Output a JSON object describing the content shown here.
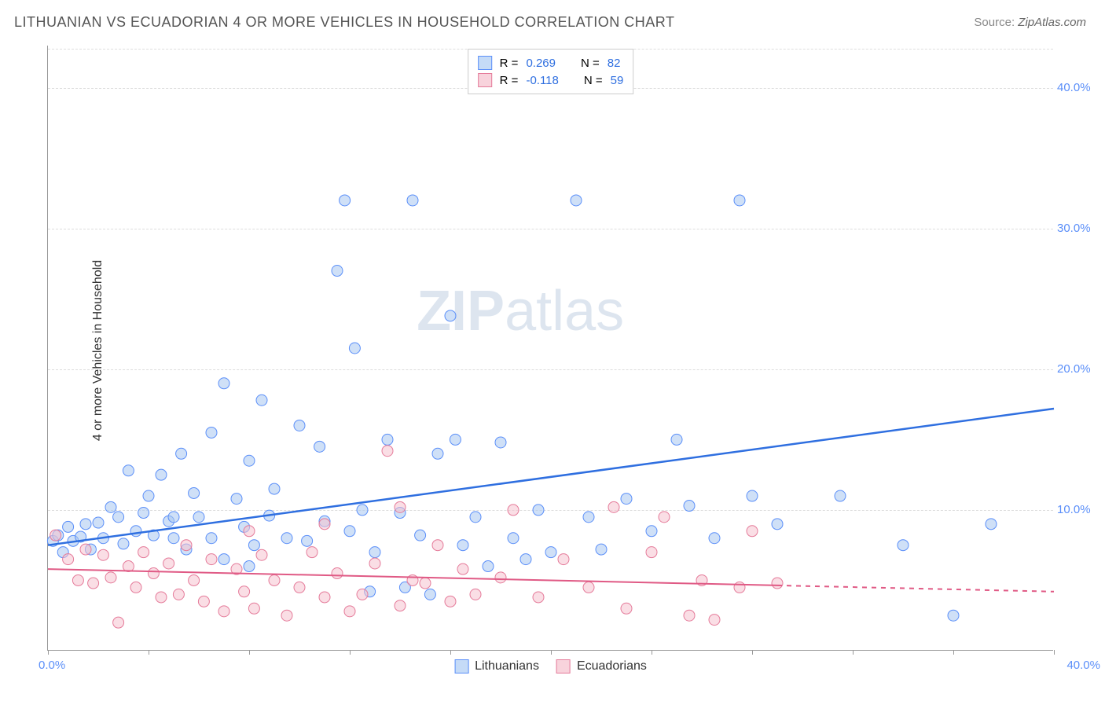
{
  "title": "LITHUANIAN VS ECUADORIAN 4 OR MORE VEHICLES IN HOUSEHOLD CORRELATION CHART",
  "source_label": "Source:",
  "source_value": "ZipAtlas.com",
  "y_axis_label": "4 or more Vehicles in Household",
  "watermark_bold": "ZIP",
  "watermark_light": "atlas",
  "chart": {
    "type": "scatter",
    "xlim": [
      0,
      40
    ],
    "ylim": [
      0,
      43
    ],
    "x_tick_step": 4,
    "y_ticks": [
      10,
      20,
      30,
      40
    ],
    "y_tick_labels": [
      "10.0%",
      "20.0%",
      "30.0%",
      "40.0%"
    ],
    "x_origin_label": "0.0%",
    "x_max_label": "40.0%",
    "background_color": "#ffffff",
    "grid_color": "#dddddd",
    "axis_color": "#999999",
    "tick_label_color": "#5b8ff9",
    "marker_radius": 7,
    "marker_opacity": 0.55,
    "series": [
      {
        "name": "Lithuanians",
        "fill_color": "#a7c7f0",
        "stroke_color": "#5b8ff9",
        "legend_swatch_fill": "#c5dbf7",
        "legend_swatch_stroke": "#5b8ff9",
        "R_label": "R =",
        "R_value": "0.269",
        "N_label": "N =",
        "N_value": "82",
        "trend": {
          "x1": 0,
          "y1": 7.5,
          "x2": 40,
          "y2": 17.2,
          "color": "#2f6fe0",
          "width": 2.5,
          "solid_until_x": 40
        },
        "points": [
          [
            0.2,
            7.8
          ],
          [
            0.4,
            8.2
          ],
          [
            0.6,
            7.0
          ],
          [
            0.8,
            8.8
          ],
          [
            1.0,
            7.8
          ],
          [
            1.3,
            8.1
          ],
          [
            1.5,
            9.0
          ],
          [
            1.7,
            7.2
          ],
          [
            2.0,
            9.1
          ],
          [
            2.2,
            8.0
          ],
          [
            2.5,
            10.2
          ],
          [
            2.8,
            9.5
          ],
          [
            3.0,
            7.6
          ],
          [
            3.2,
            12.8
          ],
          [
            3.5,
            8.5
          ],
          [
            3.8,
            9.8
          ],
          [
            4.0,
            11.0
          ],
          [
            4.2,
            8.2
          ],
          [
            4.5,
            12.5
          ],
          [
            4.8,
            9.2
          ],
          [
            5.0,
            8.0
          ],
          [
            5.3,
            14.0
          ],
          [
            5.5,
            7.2
          ],
          [
            5.8,
            11.2
          ],
          [
            6.0,
            9.5
          ],
          [
            6.5,
            15.5
          ],
          [
            7.0,
            19.0
          ],
          [
            7.0,
            6.5
          ],
          [
            7.5,
            10.8
          ],
          [
            7.8,
            8.8
          ],
          [
            8.0,
            13.5
          ],
          [
            8.2,
            7.5
          ],
          [
            8.5,
            17.8
          ],
          [
            8.8,
            9.6
          ],
          [
            9.0,
            11.5
          ],
          [
            9.5,
            8.0
          ],
          [
            10.0,
            16.0
          ],
          [
            10.3,
            7.8
          ],
          [
            10.8,
            14.5
          ],
          [
            11.0,
            9.2
          ],
          [
            11.5,
            27.0
          ],
          [
            11.8,
            32.0
          ],
          [
            12.0,
            8.5
          ],
          [
            12.2,
            21.5
          ],
          [
            12.5,
            10.0
          ],
          [
            12.8,
            4.2
          ],
          [
            13.0,
            7.0
          ],
          [
            13.5,
            15.0
          ],
          [
            14.0,
            9.8
          ],
          [
            14.2,
            4.5
          ],
          [
            14.5,
            32.0
          ],
          [
            14.8,
            8.2
          ],
          [
            15.2,
            4.0
          ],
          [
            15.5,
            14.0
          ],
          [
            16.0,
            23.8
          ],
          [
            16.2,
            15.0
          ],
          [
            16.5,
            7.5
          ],
          [
            17.0,
            9.5
          ],
          [
            17.5,
            6.0
          ],
          [
            18.0,
            14.8
          ],
          [
            18.5,
            8.0
          ],
          [
            19.0,
            6.5
          ],
          [
            19.5,
            10.0
          ],
          [
            20.0,
            7.0
          ],
          [
            21.0,
            32.0
          ],
          [
            21.5,
            9.5
          ],
          [
            22.0,
            7.2
          ],
          [
            23.0,
            10.8
          ],
          [
            24.0,
            8.5
          ],
          [
            25.0,
            15.0
          ],
          [
            25.5,
            10.3
          ],
          [
            26.5,
            8.0
          ],
          [
            27.5,
            32.0
          ],
          [
            28.0,
            11.0
          ],
          [
            29.0,
            9.0
          ],
          [
            31.5,
            11.0
          ],
          [
            34.0,
            7.5
          ],
          [
            36.0,
            2.5
          ],
          [
            37.5,
            9.0
          ],
          [
            8.0,
            6.0
          ],
          [
            6.5,
            8.0
          ],
          [
            5.0,
            9.5
          ]
        ]
      },
      {
        "name": "Ecuadorians",
        "fill_color": "#f6c3cf",
        "stroke_color": "#e57b9a",
        "legend_swatch_fill": "#f8d3dc",
        "legend_swatch_stroke": "#e57b9a",
        "R_label": "R =",
        "R_value": "-0.118",
        "N_label": "N =",
        "N_value": "59",
        "trend": {
          "x1": 0,
          "y1": 5.8,
          "x2": 40,
          "y2": 4.2,
          "color": "#e05a85",
          "width": 2,
          "solid_until_x": 29
        },
        "points": [
          [
            0.3,
            8.2
          ],
          [
            0.8,
            6.5
          ],
          [
            1.2,
            5.0
          ],
          [
            1.5,
            7.2
          ],
          [
            1.8,
            4.8
          ],
          [
            2.2,
            6.8
          ],
          [
            2.5,
            5.2
          ],
          [
            2.8,
            2.0
          ],
          [
            3.2,
            6.0
          ],
          [
            3.5,
            4.5
          ],
          [
            3.8,
            7.0
          ],
          [
            4.2,
            5.5
          ],
          [
            4.5,
            3.8
          ],
          [
            4.8,
            6.2
          ],
          [
            5.2,
            4.0
          ],
          [
            5.5,
            7.5
          ],
          [
            5.8,
            5.0
          ],
          [
            6.2,
            3.5
          ],
          [
            6.5,
            6.5
          ],
          [
            7.0,
            2.8
          ],
          [
            7.5,
            5.8
          ],
          [
            7.8,
            4.2
          ],
          [
            8.2,
            3.0
          ],
          [
            8.5,
            6.8
          ],
          [
            9.0,
            5.0
          ],
          [
            9.5,
            2.5
          ],
          [
            10.0,
            4.5
          ],
          [
            10.5,
            7.0
          ],
          [
            11.0,
            3.8
          ],
          [
            11.5,
            5.5
          ],
          [
            12.0,
            2.8
          ],
          [
            12.5,
            4.0
          ],
          [
            13.0,
            6.2
          ],
          [
            13.5,
            14.2
          ],
          [
            14.0,
            3.2
          ],
          [
            14.5,
            5.0
          ],
          [
            15.0,
            4.8
          ],
          [
            15.5,
            7.5
          ],
          [
            16.0,
            3.5
          ],
          [
            16.5,
            5.8
          ],
          [
            17.0,
            4.0
          ],
          [
            18.0,
            5.2
          ],
          [
            18.5,
            10.0
          ],
          [
            19.5,
            3.8
          ],
          [
            20.5,
            6.5
          ],
          [
            21.5,
            4.5
          ],
          [
            22.5,
            10.2
          ],
          [
            23.0,
            3.0
          ],
          [
            24.0,
            7.0
          ],
          [
            24.5,
            9.5
          ],
          [
            25.5,
            2.5
          ],
          [
            26.0,
            5.0
          ],
          [
            26.5,
            2.2
          ],
          [
            27.5,
            4.5
          ],
          [
            28.0,
            8.5
          ],
          [
            29.0,
            4.8
          ],
          [
            14.0,
            10.2
          ],
          [
            11.0,
            9.0
          ],
          [
            8.0,
            8.5
          ]
        ]
      }
    ]
  }
}
